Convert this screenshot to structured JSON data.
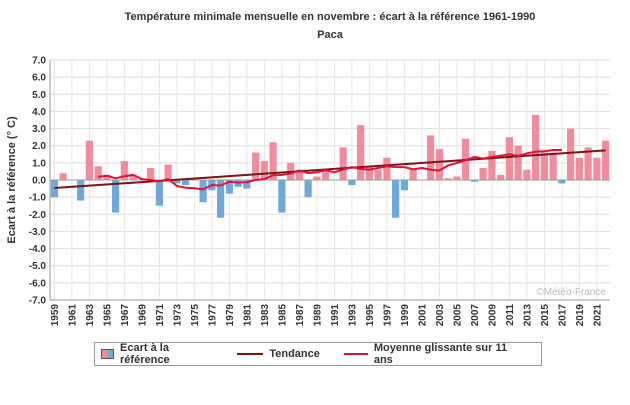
{
  "chart_data": {
    "type": "bar",
    "title": "Température minimale mensuelle en novembre : écart à la référence 1961-1990",
    "subtitle": "Paca",
    "ylabel": "Ecart à la référence (° C)",
    "xlabel": "",
    "ylim": [
      -7.0,
      7.0
    ],
    "y_ticks": [
      "-7.0",
      "-6.0",
      "-5.0",
      "-4.0",
      "-3.0",
      "-2.0",
      "-1.0",
      "0.0",
      "1.0",
      "2.0",
      "3.0",
      "4.0",
      "5.0",
      "6.0",
      "7.0"
    ],
    "x_ticks": [
      "1959",
      "1961",
      "1963",
      "1965",
      "1967",
      "1969",
      "1971",
      "1973",
      "1975",
      "1977",
      "1979",
      "1981",
      "1983",
      "1985",
      "1987",
      "1989",
      "1991",
      "1993",
      "1995",
      "1997",
      "1999",
      "2001",
      "2003",
      "2005",
      "2007",
      "2009",
      "2011",
      "2013",
      "2015",
      "2017",
      "2019",
      "2021"
    ],
    "grid": true,
    "legend_position": "bottom",
    "watermark": "©Météo-France",
    "colors": {
      "positive": "#f08c9c",
      "negative": "#6fa8dc",
      "trend": "#7a1515",
      "moving_avg": "#e0103a"
    },
    "years": [
      1959,
      1960,
      1961,
      1962,
      1963,
      1964,
      1965,
      1966,
      1967,
      1968,
      1969,
      1970,
      1971,
      1972,
      1973,
      1974,
      1975,
      1976,
      1977,
      1978,
      1979,
      1980,
      1981,
      1982,
      1983,
      1984,
      1985,
      1986,
      1987,
      1988,
      1989,
      1990,
      1991,
      1992,
      1993,
      1994,
      1995,
      1996,
      1997,
      1998,
      1999,
      2000,
      2001,
      2002,
      2003,
      2004,
      2005,
      2006,
      2007,
      2008,
      2009,
      2010,
      2011,
      2012,
      2013,
      2014,
      2015,
      2016,
      2017,
      2018,
      2019,
      2020,
      2021,
      2022
    ],
    "series": [
      {
        "name": "Ecart à la référence",
        "type": "bar",
        "values": [
          -1.0,
          0.4,
          0.0,
          -1.2,
          2.3,
          0.8,
          0.3,
          -1.9,
          1.1,
          0.3,
          0.0,
          0.7,
          -1.5,
          0.9,
          -0.2,
          -0.3,
          0.0,
          -1.3,
          -0.6,
          -2.2,
          -0.8,
          -0.4,
          -0.5,
          1.6,
          1.1,
          2.2,
          -1.9,
          1.0,
          0.6,
          -1.0,
          0.2,
          0.6,
          0.0,
          1.9,
          -0.3,
          3.2,
          0.8,
          0.6,
          1.3,
          -2.2,
          -0.6,
          0.6,
          0.0,
          2.6,
          1.8,
          0.1,
          0.2,
          2.4,
          -0.1,
          0.7,
          1.7,
          0.3,
          2.5,
          2.0,
          0.6,
          3.8,
          1.6,
          1.6,
          -0.2,
          3.0,
          1.3,
          1.9,
          1.3,
          2.3
        ]
      },
      {
        "name": "Tendance",
        "type": "line",
        "start": [
          1959,
          -0.47
        ],
        "end": [
          2022,
          1.73
        ]
      },
      {
        "name": "Moyenne glissante sur 11 ans",
        "type": "line",
        "x": [
          1964,
          1965,
          1966,
          1967,
          1968,
          1969,
          1970,
          1971,
          1972,
          1973,
          1974,
          1975,
          1976,
          1977,
          1978,
          1979,
          1980,
          1981,
          1982,
          1983,
          1984,
          1985,
          1986,
          1987,
          1988,
          1989,
          1990,
          1991,
          1992,
          1993,
          1994,
          1995,
          1996,
          1997,
          1998,
          1999,
          2000,
          2001,
          2002,
          2003,
          2004,
          2005,
          2006,
          2007,
          2008,
          2009,
          2010,
          2011,
          2012,
          2013,
          2014,
          2015,
          2016,
          2017
        ],
        "y": [
          0.18,
          0.25,
          0.1,
          0.22,
          0.3,
          0.05,
          0.0,
          -0.08,
          0.05,
          -0.35,
          -0.45,
          -0.48,
          -0.55,
          -0.3,
          -0.32,
          -0.1,
          -0.15,
          -0.12,
          0.0,
          0.05,
          0.28,
          0.3,
          0.38,
          0.55,
          0.4,
          0.45,
          0.58,
          0.45,
          0.62,
          0.75,
          0.65,
          0.6,
          0.7,
          0.8,
          0.75,
          0.75,
          0.62,
          0.7,
          0.6,
          0.55,
          0.85,
          1.0,
          1.15,
          1.35,
          1.25,
          1.35,
          1.42,
          1.5,
          1.4,
          1.55,
          1.65,
          1.68,
          1.75,
          1.75
        ]
      }
    ]
  }
}
